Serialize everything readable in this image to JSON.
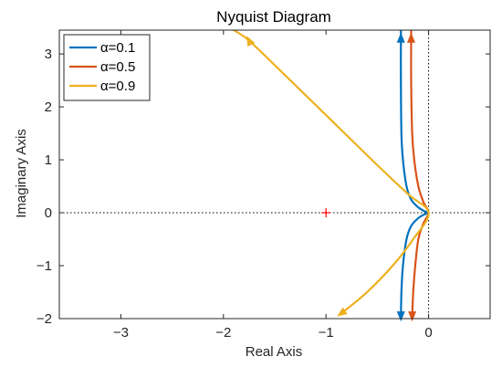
{
  "chart_data": {
    "type": "line",
    "title": "Nyquist Diagram",
    "xlabel": "Real Axis",
    "ylabel": "Imaginary Axis",
    "xlim": [
      -3.6,
      0.6
    ],
    "ylim": [
      -2,
      3.45
    ],
    "xticks": [
      -3,
      -2,
      -1,
      0
    ],
    "yticks": [
      -2,
      -1,
      0,
      1,
      2,
      3
    ],
    "grid": false,
    "legend_position": "top-left",
    "reference_lines": {
      "x": 0,
      "y": 0,
      "style": "dotted"
    },
    "critical_point": {
      "x": -1,
      "y": 0,
      "marker": "+",
      "color": "#ff0000"
    },
    "series": [
      {
        "name": "α=0.1",
        "color": "#0072bd",
        "points": [
          [
            -0.27,
            3.45
          ],
          [
            -0.27,
            2.5
          ],
          [
            -0.265,
            1.5
          ],
          [
            -0.25,
            1.0
          ],
          [
            -0.215,
            0.5
          ],
          [
            -0.17,
            0.25
          ],
          [
            -0.1,
            0.1
          ],
          [
            -0.04,
            0.03
          ],
          [
            0,
            0
          ],
          [
            -0.04,
            -0.03
          ],
          [
            -0.1,
            -0.1
          ],
          [
            -0.17,
            -0.25
          ],
          [
            -0.215,
            -0.5
          ],
          [
            -0.25,
            -1.0
          ],
          [
            -0.265,
            -1.5
          ],
          [
            -0.27,
            -2.0
          ]
        ]
      },
      {
        "name": "α=0.5",
        "color": "#d95319",
        "points": [
          [
            -0.17,
            3.45
          ],
          [
            -0.17,
            2.5
          ],
          [
            -0.16,
            1.5
          ],
          [
            -0.14,
            1.0
          ],
          [
            -0.1,
            0.5
          ],
          [
            -0.05,
            0.2
          ],
          [
            0,
            0
          ],
          [
            -0.05,
            -0.2
          ],
          [
            -0.1,
            -0.5
          ],
          [
            -0.13,
            -1.0
          ],
          [
            -0.15,
            -1.5
          ],
          [
            -0.16,
            -2.0
          ]
        ]
      },
      {
        "name": "α=0.9",
        "color": "#edb120",
        "points": [
          [
            -1.9,
            3.45
          ],
          [
            -1.75,
            3.25
          ],
          [
            -1.4,
            2.6
          ],
          [
            -0.95,
            1.75
          ],
          [
            -0.5,
            0.9
          ],
          [
            -0.2,
            0.35
          ],
          [
            0,
            0
          ],
          [
            -0.15,
            -0.5
          ],
          [
            -0.35,
            -1.0
          ],
          [
            -0.6,
            -1.5
          ],
          [
            -0.85,
            -1.9
          ]
        ]
      }
    ],
    "arrows": [
      {
        "series": 0,
        "x": -0.27,
        "y": 3.3,
        "dir": "up"
      },
      {
        "series": 0,
        "x": -0.27,
        "y": -1.95,
        "dir": "down"
      },
      {
        "series": 1,
        "x": -0.17,
        "y": 3.3,
        "dir": "up"
      },
      {
        "series": 1,
        "x": -0.16,
        "y": -1.95,
        "dir": "down"
      },
      {
        "series": 2,
        "x": -1.75,
        "y": 3.25,
        "dir": "up-left"
      },
      {
        "series": 2,
        "x": -0.85,
        "y": -1.9,
        "dir": "down-left"
      }
    ]
  }
}
